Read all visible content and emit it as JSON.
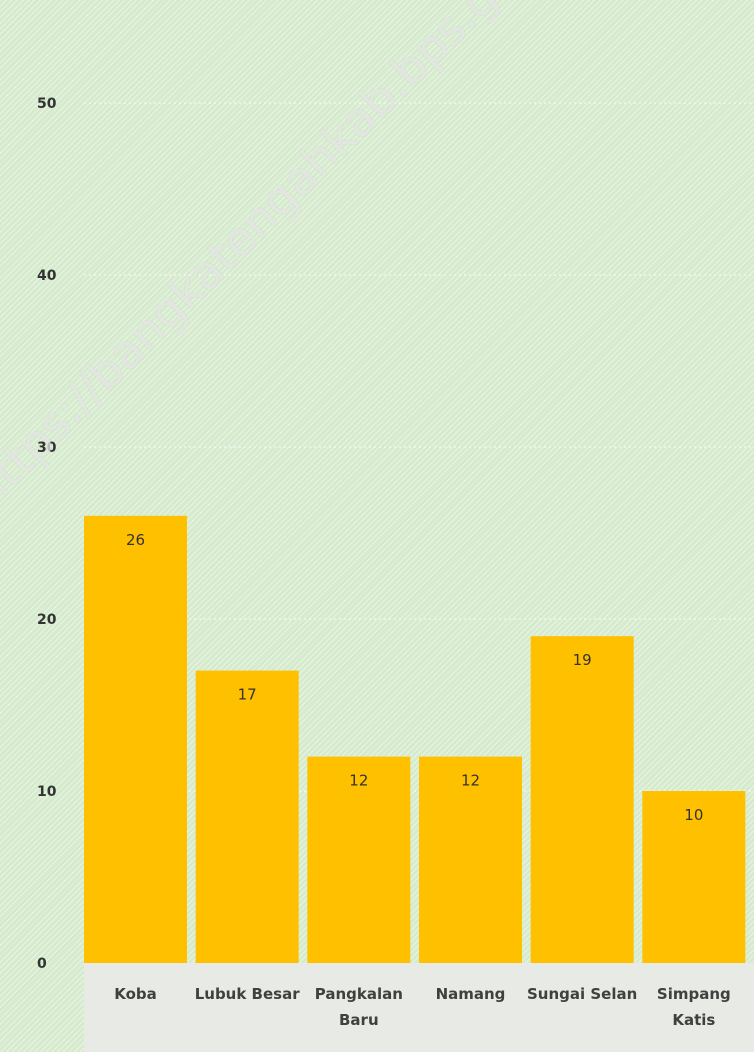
{
  "chart_data": {
    "type": "bar",
    "title": "",
    "xlabel": "",
    "ylabel": "",
    "categories": [
      [
        "Koba"
      ],
      [
        "Lubuk Besar"
      ],
      [
        "Pangkalan",
        "Baru"
      ],
      [
        "Namang"
      ],
      [
        "Sungai Selan"
      ],
      [
        "Simpang",
        "Katis"
      ]
    ],
    "values": [
      26,
      17,
      12,
      12,
      19,
      10
    ],
    "ylim": [
      0,
      50
    ],
    "yticks": [
      "0",
      "10",
      "20",
      "30",
      "40",
      "50"
    ],
    "grid": true,
    "bar_color": "#ffc000",
    "category_band_color": "#e8ebe5",
    "watermark": "https://bangkatengahkab.bps.go.id"
  }
}
